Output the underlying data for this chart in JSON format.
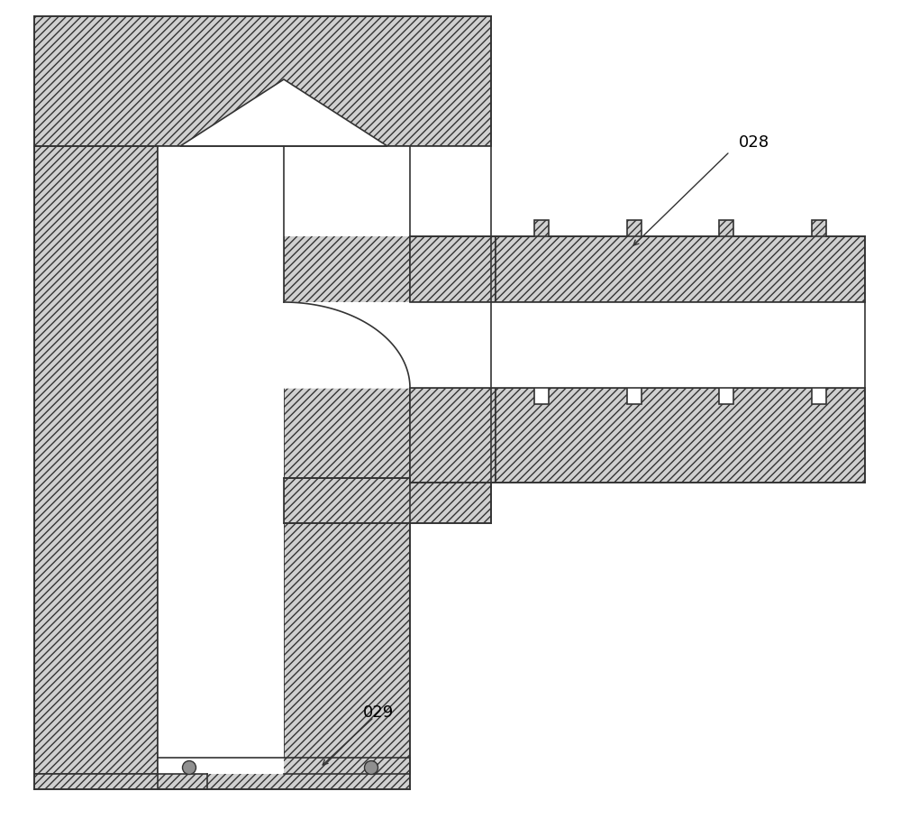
{
  "bg_color": "#ffffff",
  "line_color": "#333333",
  "fill_color": "#d0d0d0",
  "label_028": "028",
  "label_029": "029"
}
